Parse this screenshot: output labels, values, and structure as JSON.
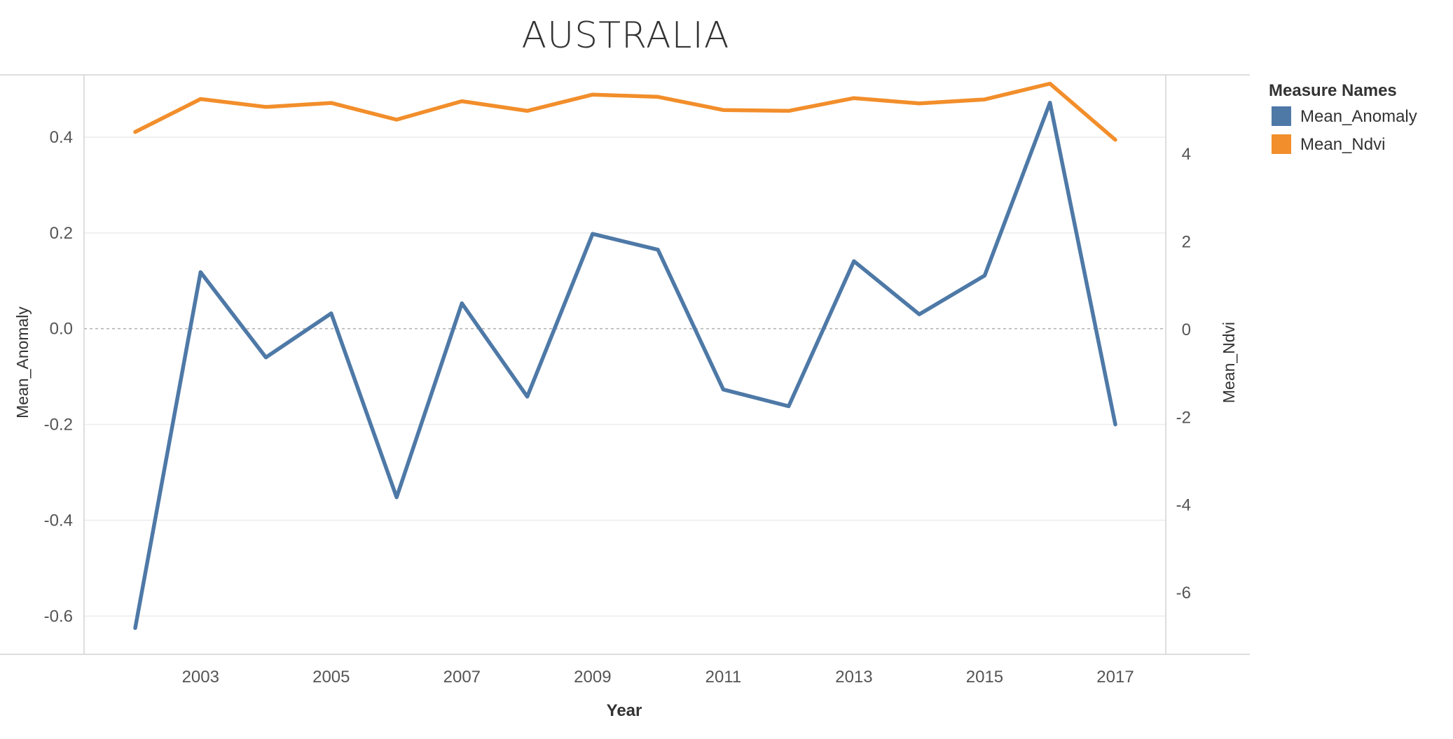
{
  "chart_data": {
    "type": "line",
    "title": "AUSTRALIA",
    "xlabel": "Year",
    "ylabel_left": "Mean_Anomaly",
    "ylabel_right": "Mean_Ndvi",
    "legend_title": "Measure Names",
    "legend_position": "right",
    "x": [
      2002,
      2003,
      2004,
      2005,
      2006,
      2007,
      2008,
      2009,
      2010,
      2011,
      2012,
      2013,
      2014,
      2015,
      2016,
      2017
    ],
    "x_ticks": [
      "2003",
      "2005",
      "2007",
      "2009",
      "2011",
      "2013",
      "2015",
      "2017"
    ],
    "y_left_ticks": [
      "0.4",
      "0.2",
      "0.0",
      "-0.2",
      "-0.4",
      "-0.6"
    ],
    "y_right_ticks": [
      "4",
      "2",
      "0",
      "-2",
      "-4",
      "-6"
    ],
    "ylim_left": [
      -0.68,
      0.53
    ],
    "ylim_right": [
      -7.4,
      5.8
    ],
    "grid": true,
    "series": [
      {
        "name": "Mean_Anomaly",
        "axis": "left",
        "color": "#4e79a7",
        "values": [
          -0.625,
          0.118,
          -0.06,
          0.032,
          -0.352,
          0.053,
          -0.142,
          0.198,
          0.165,
          -0.127,
          -0.162,
          0.141,
          0.03,
          0.111,
          0.472,
          -0.2
        ]
      },
      {
        "name": "Mean_Ndvi",
        "axis": "right",
        "color": "#f28e2b",
        "values": [
          4.5,
          5.25,
          5.07,
          5.16,
          4.78,
          5.2,
          4.98,
          5.35,
          5.3,
          5.0,
          4.98,
          5.27,
          5.15,
          5.24,
          5.6,
          4.32
        ]
      }
    ]
  }
}
